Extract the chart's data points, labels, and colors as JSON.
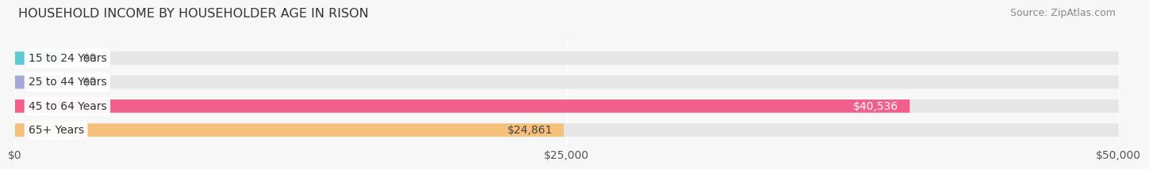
{
  "title": "HOUSEHOLD INCOME BY HOUSEHOLDER AGE IN RISON",
  "source": "Source: ZipAtlas.com",
  "categories": [
    "15 to 24 Years",
    "25 to 44 Years",
    "45 to 64 Years",
    "65+ Years"
  ],
  "values": [
    0,
    0,
    40536,
    24861
  ],
  "bar_colors": [
    "#5ecad6",
    "#a8a8d8",
    "#f0608a",
    "#f5c07a"
  ],
  "bar_labels": [
    "$0",
    "$0",
    "$40,536",
    "$24,861"
  ],
  "label_colors": [
    "#555555",
    "#555555",
    "#ffffff",
    "#444444"
  ],
  "xlim": [
    0,
    50000
  ],
  "xticks": [
    0,
    25000,
    50000
  ],
  "xticklabels": [
    "$0",
    "$25,000",
    "$50,000"
  ],
  "background_color": "#f7f7f7",
  "bar_background_color": "#e6e6e6",
  "title_fontsize": 11.5,
  "source_fontsize": 9,
  "label_fontsize": 10,
  "tick_fontsize": 10,
  "category_fontsize": 10,
  "bar_height": 0.55,
  "bar_gap": 1.0,
  "zero_bar_width": 2200,
  "figsize": [
    14.06,
    2.33
  ]
}
